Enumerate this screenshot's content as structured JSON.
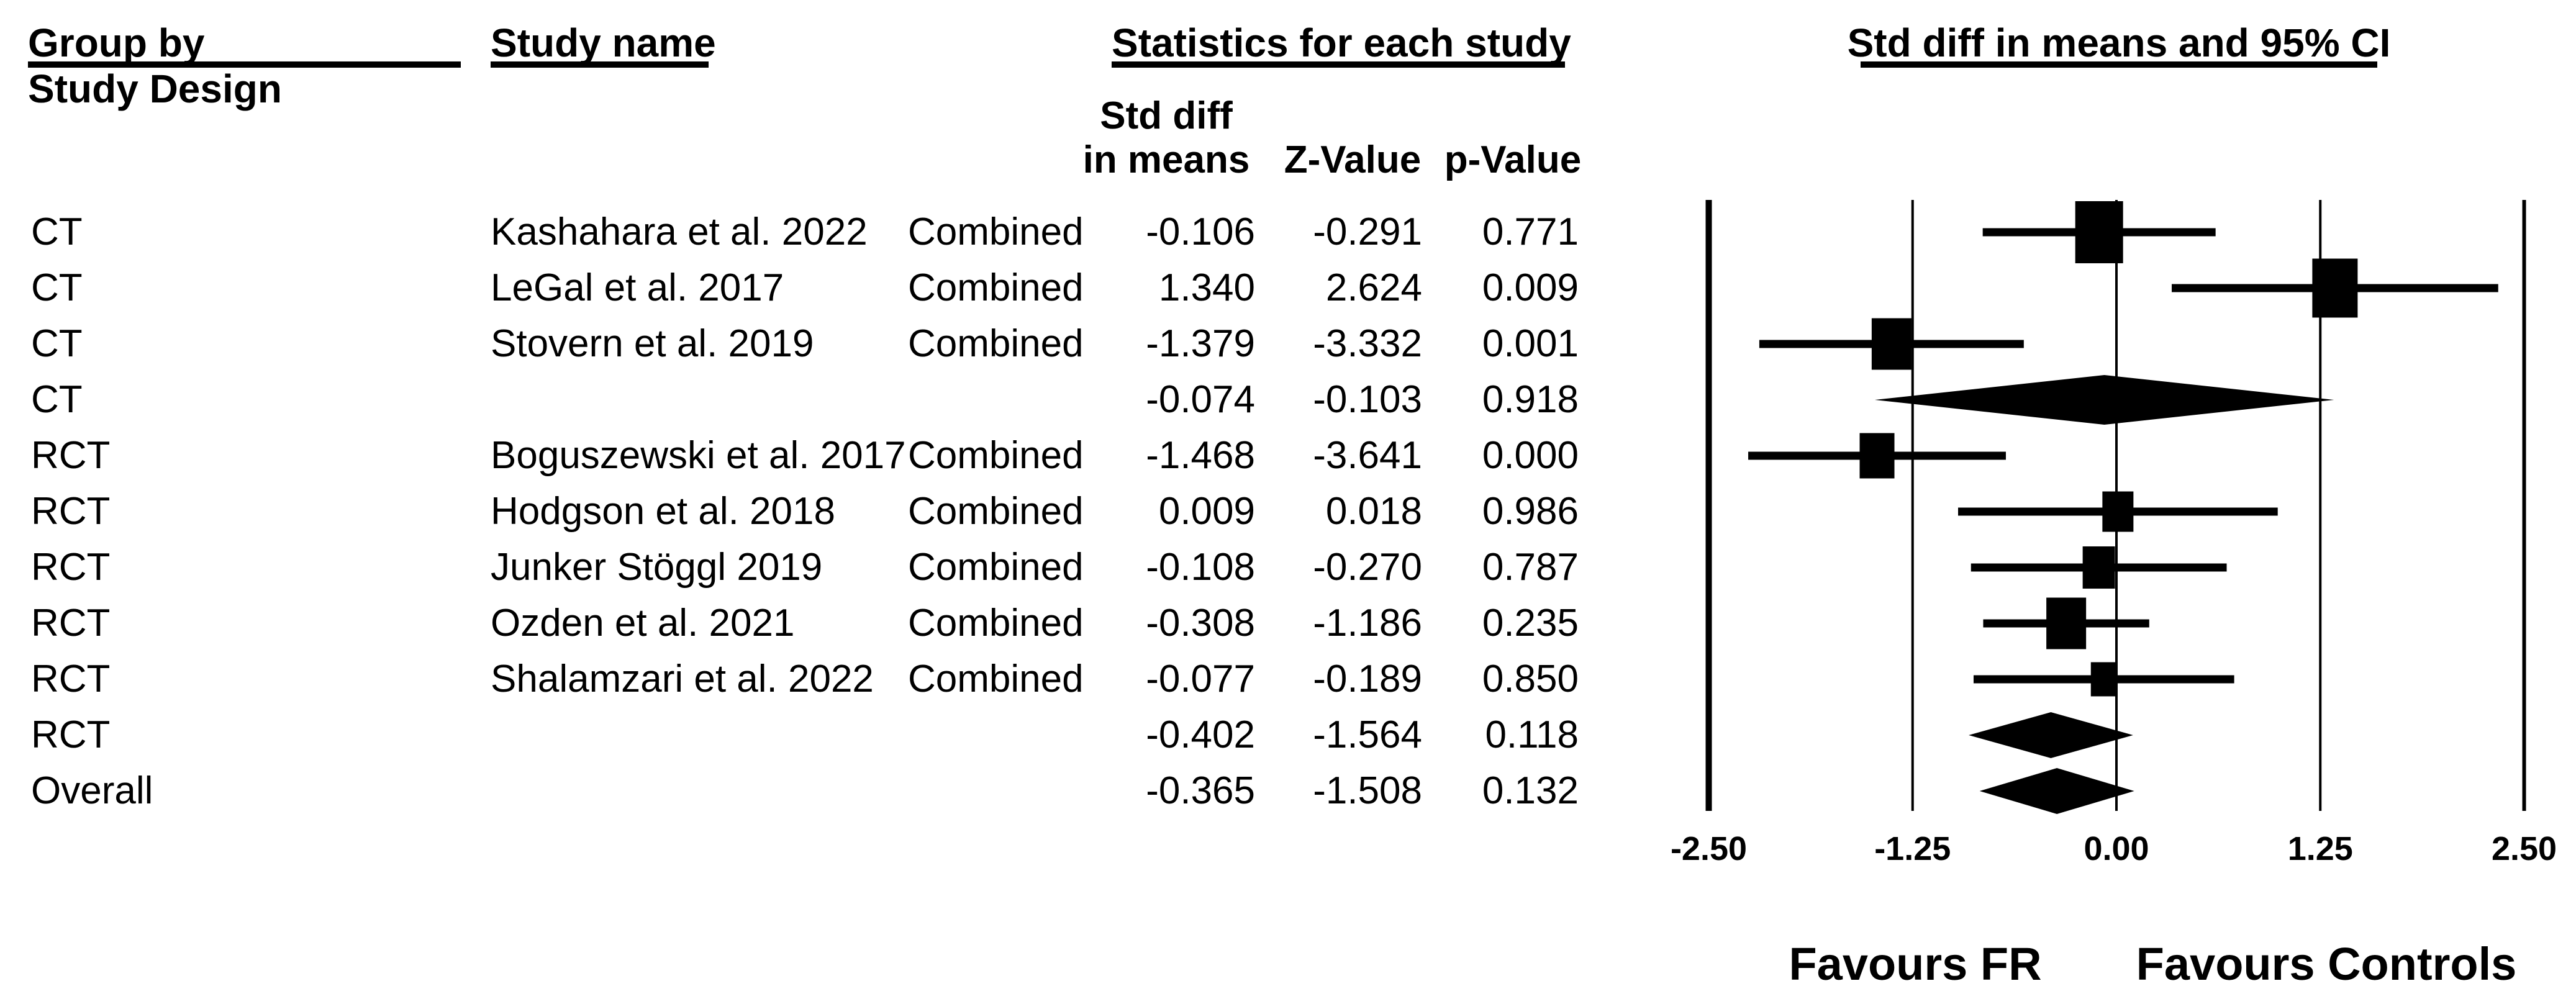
{
  "header": {
    "col_group_line1": "Group by",
    "col_group_line2": "Study Design",
    "col_study": "Study name",
    "stats_title": "Statistics for each study",
    "sub_std_line1": "Std diff",
    "sub_std_line2": "in means",
    "sub_z": "Z-Value",
    "sub_p": "p-Value",
    "plot_title": "Std diff in means and 95% CI"
  },
  "footer": {
    "favours_left": "Favours FR",
    "favours_right": "Favours Controls"
  },
  "colors": {
    "ink": "#000000",
    "background": "#ffffff"
  },
  "chart_data": {
    "type": "forest",
    "effect_measure": "Std diff in means",
    "xlim": [
      -2.5,
      2.5
    ],
    "ticks": [
      -2.5,
      -1.25,
      0,
      1.25,
      2.5
    ],
    "tick_labels": [
      "-2.50",
      "-1.25",
      "0.00",
      "1.25",
      "2.50"
    ],
    "grid": "vertical-gridlines-at-ticks",
    "rows": [
      {
        "group": "CT",
        "study": "Kashahara et al. 2022",
        "outcome": "Combined",
        "std_diff": -0.106,
        "z": -0.291,
        "p": 0.771,
        "ci_low": -0.82,
        "ci_high": 0.608,
        "marker": "square",
        "size": 77
      },
      {
        "group": "CT",
        "study": "LeGal et al. 2017",
        "outcome": "Combined",
        "std_diff": 1.34,
        "z": 2.624,
        "p": 0.009,
        "ci_low": 0.339,
        "ci_high": 2.341,
        "marker": "square",
        "size": 73
      },
      {
        "group": "CT",
        "study": "Stovern et al. 2019",
        "outcome": "Combined",
        "std_diff": -1.379,
        "z": -3.332,
        "p": 0.001,
        "ci_low": -2.19,
        "ci_high": -0.568,
        "marker": "square",
        "size": 64
      },
      {
        "group": "CT",
        "study": "",
        "outcome": "",
        "std_diff": -0.074,
        "z": -0.103,
        "p": 0.918,
        "ci_low": -1.482,
        "ci_high": 1.334,
        "marker": "diamond",
        "size": 40
      },
      {
        "group": "RCT",
        "study": "Boguszewski et al. 2017",
        "outcome": "Combined",
        "std_diff": -1.468,
        "z": -3.641,
        "p": 0.0,
        "ci_low": -2.258,
        "ci_high": -0.678,
        "marker": "square",
        "size": 56
      },
      {
        "group": "RCT",
        "study": "Hodgson et al. 2018",
        "outcome": "Combined",
        "std_diff": 0.009,
        "z": 0.018,
        "p": 0.986,
        "ci_low": -0.971,
        "ci_high": 0.989,
        "marker": "square",
        "size": 50
      },
      {
        "group": "RCT",
        "study": "Junker Stöggl 2019",
        "outcome": "Combined",
        "std_diff": -0.108,
        "z": -0.27,
        "p": 0.787,
        "ci_low": -0.892,
        "ci_high": 0.676,
        "marker": "square",
        "size": 52
      },
      {
        "group": "RCT",
        "study": "Ozden et al. 2021",
        "outcome": "Combined",
        "std_diff": -0.308,
        "z": -1.186,
        "p": 0.235,
        "ci_low": -0.817,
        "ci_high": 0.201,
        "marker": "square",
        "size": 64
      },
      {
        "group": "RCT",
        "study": "Shalamzari et al. 2022",
        "outcome": "Combined",
        "std_diff": -0.077,
        "z": -0.189,
        "p": 0.85,
        "ci_low": -0.876,
        "ci_high": 0.722,
        "marker": "square",
        "size": 42
      },
      {
        "group": "RCT",
        "study": "",
        "outcome": "",
        "std_diff": -0.402,
        "z": -1.564,
        "p": 0.118,
        "ci_low": -0.906,
        "ci_high": 0.102,
        "marker": "diamond",
        "size": 37
      },
      {
        "group": "Overall",
        "study": "",
        "outcome": "",
        "std_diff": -0.365,
        "z": -1.508,
        "p": 0.132,
        "ci_low": -0.839,
        "ci_high": 0.109,
        "marker": "diamond",
        "size": 37
      }
    ]
  }
}
